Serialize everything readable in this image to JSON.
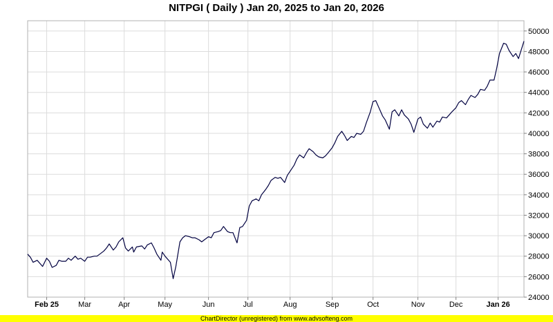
{
  "chart_data": {
    "type": "line",
    "title": "NITPGI ( Daily ) Jan 20, 2025 to Jan 20, 2026",
    "xlabel": "",
    "ylabel": "",
    "ylim": [
      24000,
      51000
    ],
    "y_ticks": [
      24000,
      26000,
      28000,
      30000,
      32000,
      34000,
      36000,
      38000,
      40000,
      42000,
      44000,
      46000,
      48000,
      50000
    ],
    "x_range": [
      "2025-01-20",
      "2026-01-20"
    ],
    "x_ticks": [
      {
        "label": "Feb 25",
        "date": "2025-02-03",
        "bold": true
      },
      {
        "label": "Mar",
        "date": "2025-03-03",
        "bold": false
      },
      {
        "label": "Apr",
        "date": "2025-04-01",
        "bold": false
      },
      {
        "label": "May",
        "date": "2025-05-01",
        "bold": false
      },
      {
        "label": "Jun",
        "date": "2025-06-02",
        "bold": false
      },
      {
        "label": "Jul",
        "date": "2025-07-01",
        "bold": false
      },
      {
        "label": "Aug",
        "date": "2025-08-01",
        "bold": false
      },
      {
        "label": "Sep",
        "date": "2025-09-01",
        "bold": false
      },
      {
        "label": "Oct",
        "date": "2025-10-01",
        "bold": false
      },
      {
        "label": "Nov",
        "date": "2025-11-03",
        "bold": false
      },
      {
        "label": "Dec",
        "date": "2025-12-01",
        "bold": false
      },
      {
        "label": "Jan 26",
        "date": "2026-01-01",
        "bold": true
      }
    ],
    "grid": true,
    "y_axis_side": "right",
    "series": [
      {
        "color": "#000040",
        "points": [
          [
            "2025-01-20",
            28200
          ],
          [
            "2025-01-22",
            27900
          ],
          [
            "2025-01-24",
            27400
          ],
          [
            "2025-01-27",
            27600
          ],
          [
            "2025-01-29",
            27300
          ],
          [
            "2025-01-31",
            27000
          ],
          [
            "2025-02-03",
            27800
          ],
          [
            "2025-02-05",
            27500
          ],
          [
            "2025-02-07",
            26900
          ],
          [
            "2025-02-10",
            27100
          ],
          [
            "2025-02-12",
            27600
          ],
          [
            "2025-02-14",
            27500
          ],
          [
            "2025-02-17",
            27500
          ],
          [
            "2025-02-19",
            27800
          ],
          [
            "2025-02-21",
            27600
          ],
          [
            "2025-02-24",
            28000
          ],
          [
            "2025-02-26",
            27700
          ],
          [
            "2025-02-28",
            27800
          ],
          [
            "2025-03-03",
            27500
          ],
          [
            "2025-03-05",
            27900
          ],
          [
            "2025-03-07",
            27900
          ],
          [
            "2025-03-10",
            28000
          ],
          [
            "2025-03-12",
            28000
          ],
          [
            "2025-03-14",
            28200
          ],
          [
            "2025-03-17",
            28500
          ],
          [
            "2025-03-19",
            28800
          ],
          [
            "2025-03-21",
            29200
          ],
          [
            "2025-03-24",
            28600
          ],
          [
            "2025-03-26",
            28900
          ],
          [
            "2025-03-28",
            29400
          ],
          [
            "2025-03-31",
            29800
          ],
          [
            "2025-04-02",
            28800
          ],
          [
            "2025-04-04",
            28500
          ],
          [
            "2025-04-07",
            28900
          ],
          [
            "2025-04-08",
            28400
          ],
          [
            "2025-04-10",
            28900
          ],
          [
            "2025-04-14",
            29000
          ],
          [
            "2025-04-16",
            28700
          ],
          [
            "2025-04-18",
            29100
          ],
          [
            "2025-04-21",
            29300
          ],
          [
            "2025-04-23",
            28800
          ],
          [
            "2025-04-25",
            28200
          ],
          [
            "2025-04-28",
            27600
          ],
          [
            "2025-04-29",
            28400
          ],
          [
            "2025-05-01",
            28000
          ],
          [
            "2025-05-05",
            27400
          ],
          [
            "2025-05-07",
            25800
          ],
          [
            "2025-05-09",
            27000
          ],
          [
            "2025-05-12",
            29400
          ],
          [
            "2025-05-14",
            29800
          ],
          [
            "2025-05-16",
            30000
          ],
          [
            "2025-05-19",
            29900
          ],
          [
            "2025-05-21",
            29800
          ],
          [
            "2025-05-23",
            29800
          ],
          [
            "2025-05-26",
            29600
          ],
          [
            "2025-05-28",
            29400
          ],
          [
            "2025-05-30",
            29600
          ],
          [
            "2025-06-02",
            29900
          ],
          [
            "2025-06-04",
            29800
          ],
          [
            "2025-06-06",
            30300
          ],
          [
            "2025-06-09",
            30400
          ],
          [
            "2025-06-11",
            30500
          ],
          [
            "2025-06-13",
            30900
          ],
          [
            "2025-06-16",
            30400
          ],
          [
            "2025-06-18",
            30300
          ],
          [
            "2025-06-20",
            30300
          ],
          [
            "2025-06-23",
            29300
          ],
          [
            "2025-06-25",
            30800
          ],
          [
            "2025-06-27",
            30900
          ],
          [
            "2025-06-30",
            31500
          ],
          [
            "2025-07-02",
            32900
          ],
          [
            "2025-07-04",
            33400
          ],
          [
            "2025-07-07",
            33600
          ],
          [
            "2025-07-09",
            33400
          ],
          [
            "2025-07-11",
            34000
          ],
          [
            "2025-07-14",
            34500
          ],
          [
            "2025-07-16",
            34900
          ],
          [
            "2025-07-18",
            35400
          ],
          [
            "2025-07-21",
            35700
          ],
          [
            "2025-07-23",
            35600
          ],
          [
            "2025-07-25",
            35700
          ],
          [
            "2025-07-28",
            35200
          ],
          [
            "2025-07-30",
            35900
          ],
          [
            "2025-08-01",
            36300
          ],
          [
            "2025-08-04",
            36900
          ],
          [
            "2025-08-06",
            37500
          ],
          [
            "2025-08-08",
            37900
          ],
          [
            "2025-08-11",
            37600
          ],
          [
            "2025-08-13",
            38100
          ],
          [
            "2025-08-15",
            38500
          ],
          [
            "2025-08-18",
            38200
          ],
          [
            "2025-08-20",
            37900
          ],
          [
            "2025-08-22",
            37700
          ],
          [
            "2025-08-25",
            37600
          ],
          [
            "2025-08-27",
            37800
          ],
          [
            "2025-08-29",
            38100
          ],
          [
            "2025-09-01",
            38600
          ],
          [
            "2025-09-03",
            39100
          ],
          [
            "2025-09-05",
            39700
          ],
          [
            "2025-09-08",
            40200
          ],
          [
            "2025-09-10",
            39800
          ],
          [
            "2025-09-12",
            39300
          ],
          [
            "2025-09-15",
            39700
          ],
          [
            "2025-09-17",
            39600
          ],
          [
            "2025-09-19",
            40000
          ],
          [
            "2025-09-22",
            39900
          ],
          [
            "2025-09-24",
            40200
          ],
          [
            "2025-09-26",
            41000
          ],
          [
            "2025-09-29",
            42100
          ],
          [
            "2025-10-01",
            43100
          ],
          [
            "2025-10-03",
            43200
          ],
          [
            "2025-10-06",
            42300
          ],
          [
            "2025-10-08",
            41700
          ],
          [
            "2025-10-10",
            41300
          ],
          [
            "2025-10-13",
            40400
          ],
          [
            "2025-10-15",
            42100
          ],
          [
            "2025-10-17",
            42300
          ],
          [
            "2025-10-20",
            41700
          ],
          [
            "2025-10-22",
            42300
          ],
          [
            "2025-10-24",
            41800
          ],
          [
            "2025-10-27",
            41400
          ],
          [
            "2025-10-29",
            40900
          ],
          [
            "2025-10-31",
            40100
          ],
          [
            "2025-11-03",
            41400
          ],
          [
            "2025-11-05",
            41600
          ],
          [
            "2025-11-07",
            40900
          ],
          [
            "2025-11-10",
            40500
          ],
          [
            "2025-11-12",
            41000
          ],
          [
            "2025-11-14",
            40600
          ],
          [
            "2025-11-17",
            41200
          ],
          [
            "2025-11-19",
            41100
          ],
          [
            "2025-11-21",
            41600
          ],
          [
            "2025-11-24",
            41500
          ],
          [
            "2025-11-26",
            41800
          ],
          [
            "2025-11-28",
            42100
          ],
          [
            "2025-12-01",
            42500
          ],
          [
            "2025-12-03",
            43000
          ],
          [
            "2025-12-05",
            43200
          ],
          [
            "2025-12-08",
            42800
          ],
          [
            "2025-12-10",
            43300
          ],
          [
            "2025-12-12",
            43700
          ],
          [
            "2025-12-15",
            43500
          ],
          [
            "2025-12-17",
            43800
          ],
          [
            "2025-12-19",
            44300
          ],
          [
            "2025-12-22",
            44200
          ],
          [
            "2025-12-24",
            44600
          ],
          [
            "2025-12-26",
            45200
          ],
          [
            "2025-12-29",
            45200
          ],
          [
            "2025-12-31",
            46400
          ],
          [
            "2026-01-02",
            47800
          ],
          [
            "2026-01-05",
            48800
          ],
          [
            "2026-01-07",
            48700
          ],
          [
            "2026-01-09",
            48100
          ],
          [
            "2026-01-12",
            47500
          ],
          [
            "2026-01-14",
            47800
          ],
          [
            "2026-01-16",
            47300
          ],
          [
            "2026-01-20",
            49000
          ]
        ]
      }
    ]
  },
  "footer_text": "ChartDirector (unregistered) from www.advsofteng.com"
}
